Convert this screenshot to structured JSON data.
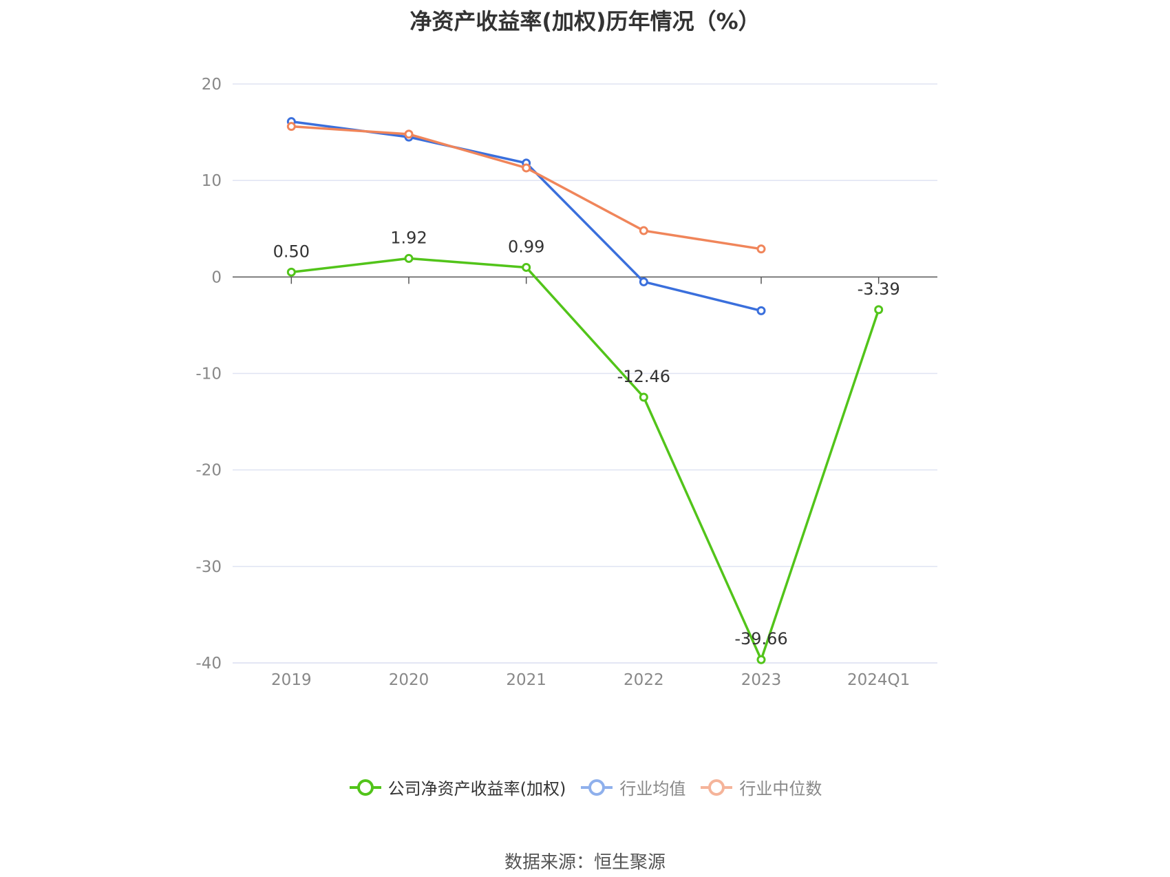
{
  "chart_data": {
    "type": "line",
    "title": "净资产收益率(加权)历年情况（%）",
    "categories": [
      "2019",
      "2020",
      "2021",
      "2022",
      "2023",
      "2024Q1"
    ],
    "ylim": [
      -40,
      20
    ],
    "yticks": [
      20,
      10,
      0,
      -10,
      -20,
      -30,
      -40
    ],
    "grid": true,
    "legend_position": "bottom",
    "series": [
      {
        "name": "公司净资产收益率(加权)",
        "color": "#52c41a",
        "values": [
          0.5,
          1.92,
          0.99,
          -12.46,
          -39.66,
          -3.39
        ],
        "labels": [
          "0.50",
          "1.92",
          "0.99",
          "-12.46",
          "-39.66",
          "-3.39"
        ]
      },
      {
        "name": "行业均值",
        "color": "#3a6fdc",
        "legend_color": "#8fb0ec",
        "values": [
          16.1,
          14.5,
          11.8,
          -0.5,
          -3.5,
          null
        ]
      },
      {
        "name": "行业中位数",
        "color": "#f0855a",
        "legend_color": "#f5b49a",
        "values": [
          15.6,
          14.8,
          11.3,
          4.8,
          2.9,
          null
        ]
      }
    ]
  },
  "source": "数据来源：恒生聚源"
}
